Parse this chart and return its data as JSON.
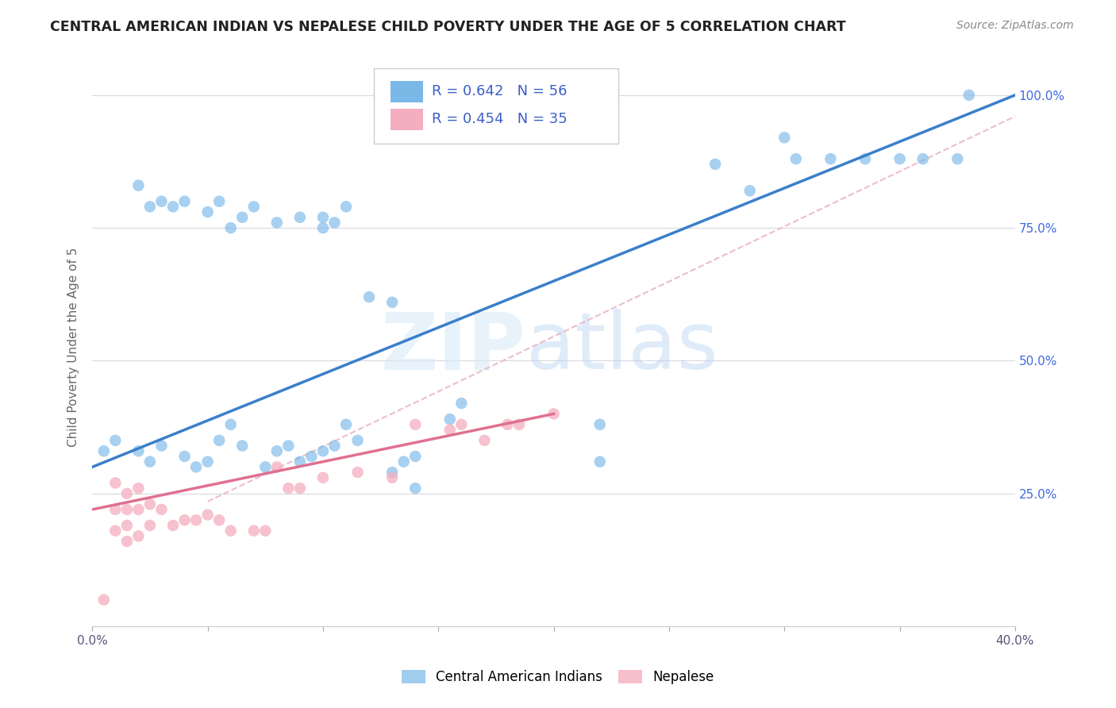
{
  "title": "CENTRAL AMERICAN INDIAN VS NEPALESE CHILD POVERTY UNDER THE AGE OF 5 CORRELATION CHART",
  "source": "Source: ZipAtlas.com",
  "ylabel": "Child Poverty Under the Age of 5",
  "watermark_zip": "ZIP",
  "watermark_atlas": "atlas",
  "legend_r1": "R = 0.642",
  "legend_n1": "N = 56",
  "legend_r2": "R = 0.454",
  "legend_n2": "N = 35",
  "legend_label1": "Central American Indians",
  "legend_label2": "Nepalese",
  "blue_color": "#7ab8e8",
  "pink_color": "#f5aec0",
  "line_blue": "#3a7fcb",
  "line_pink": "#e07090",
  "line_dashed_color": "#e8b8c8",
  "xlim": [
    0,
    0.4
  ],
  "ylim": [
    0,
    1.05
  ],
  "xticks": [
    0.0,
    0.05,
    0.1,
    0.15,
    0.2,
    0.25,
    0.3,
    0.35,
    0.4
  ],
  "yticks": [
    0.0,
    0.25,
    0.5,
    0.75,
    1.0
  ],
  "xtick_labels": [
    "0.0%",
    "",
    "",
    "",
    "",
    "",
    "",
    "",
    "40.0%"
  ],
  "ytick_labels": [
    "",
    "25.0%",
    "50.0%",
    "75.0%",
    "100.0%"
  ],
  "blue_x": [
    0.02,
    0.025,
    0.03,
    0.035,
    0.04,
    0.05,
    0.055,
    0.06,
    0.065,
    0.07,
    0.08,
    0.09,
    0.1,
    0.1,
    0.105,
    0.11,
    0.12,
    0.13,
    0.14,
    0.155,
    0.16,
    0.22,
    0.22,
    0.005,
    0.01,
    0.02,
    0.025,
    0.03,
    0.04,
    0.045,
    0.05,
    0.055,
    0.06,
    0.065,
    0.075,
    0.08,
    0.085,
    0.09,
    0.095,
    0.1,
    0.105,
    0.11,
    0.115,
    0.13,
    0.135,
    0.14,
    0.27,
    0.285,
    0.3,
    0.305,
    0.32,
    0.335,
    0.35,
    0.36,
    0.375,
    0.38
  ],
  "blue_y": [
    0.83,
    0.79,
    0.8,
    0.79,
    0.8,
    0.78,
    0.8,
    0.75,
    0.77,
    0.79,
    0.76,
    0.77,
    0.75,
    0.77,
    0.76,
    0.79,
    0.62,
    0.61,
    0.32,
    0.39,
    0.42,
    0.38,
    0.31,
    0.33,
    0.35,
    0.33,
    0.31,
    0.34,
    0.32,
    0.3,
    0.31,
    0.35,
    0.38,
    0.34,
    0.3,
    0.33,
    0.34,
    0.31,
    0.32,
    0.33,
    0.34,
    0.38,
    0.35,
    0.29,
    0.31,
    0.26,
    0.87,
    0.82,
    0.92,
    0.88,
    0.88,
    0.88,
    0.88,
    0.88,
    0.88,
    1.0
  ],
  "pink_x": [
    0.005,
    0.01,
    0.01,
    0.01,
    0.015,
    0.015,
    0.015,
    0.015,
    0.02,
    0.02,
    0.02,
    0.025,
    0.025,
    0.03,
    0.035,
    0.04,
    0.045,
    0.05,
    0.055,
    0.06,
    0.07,
    0.075,
    0.08,
    0.085,
    0.09,
    0.1,
    0.115,
    0.13,
    0.14,
    0.155,
    0.16,
    0.17,
    0.18,
    0.185,
    0.2
  ],
  "pink_y": [
    0.05,
    0.27,
    0.22,
    0.18,
    0.25,
    0.22,
    0.19,
    0.16,
    0.26,
    0.22,
    0.17,
    0.23,
    0.19,
    0.22,
    0.19,
    0.2,
    0.2,
    0.21,
    0.2,
    0.18,
    0.18,
    0.18,
    0.3,
    0.26,
    0.26,
    0.28,
    0.29,
    0.28,
    0.38,
    0.37,
    0.38,
    0.35,
    0.38,
    0.38,
    0.4
  ],
  "blue_line_x": [
    0.0,
    0.4
  ],
  "blue_line_y": [
    0.3,
    1.0
  ],
  "pink_line_x": [
    0.0,
    0.2
  ],
  "pink_line_y": [
    0.22,
    0.4
  ],
  "dashed_line_x": [
    0.05,
    0.4
  ],
  "dashed_line_y": [
    0.235,
    0.96
  ]
}
